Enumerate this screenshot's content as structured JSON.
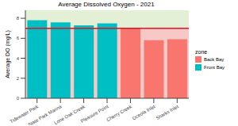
{
  "chart_data": {
    "type": "bar",
    "title": "Average Dissolved Oxygen - 2021",
    "y_label": "Average DO (mg/L)",
    "categories": [
      "Tidewater Park",
      "State Park Marina",
      "Lone Oak Creek",
      "Pleasure Point",
      "Cherry Creek",
      "Oceola Inlet",
      "Sharks Inlet"
    ],
    "series": [
      {
        "name": "Back Bay",
        "color": "#F8766D",
        "values": [
          null,
          null,
          null,
          null,
          7.0,
          5.8,
          5.9
        ]
      },
      {
        "name": "Front Bay",
        "color": "#00BFC4",
        "values": [
          7.8,
          7.6,
          7.3,
          7.5,
          null,
          null,
          null
        ]
      }
    ],
    "threshold": 7,
    "ylim": [
      0,
      8.8
    ],
    "yticks": [
      0,
      2,
      4,
      6,
      8
    ],
    "grid": true,
    "legend": "right",
    "legend_title": "zone"
  }
}
